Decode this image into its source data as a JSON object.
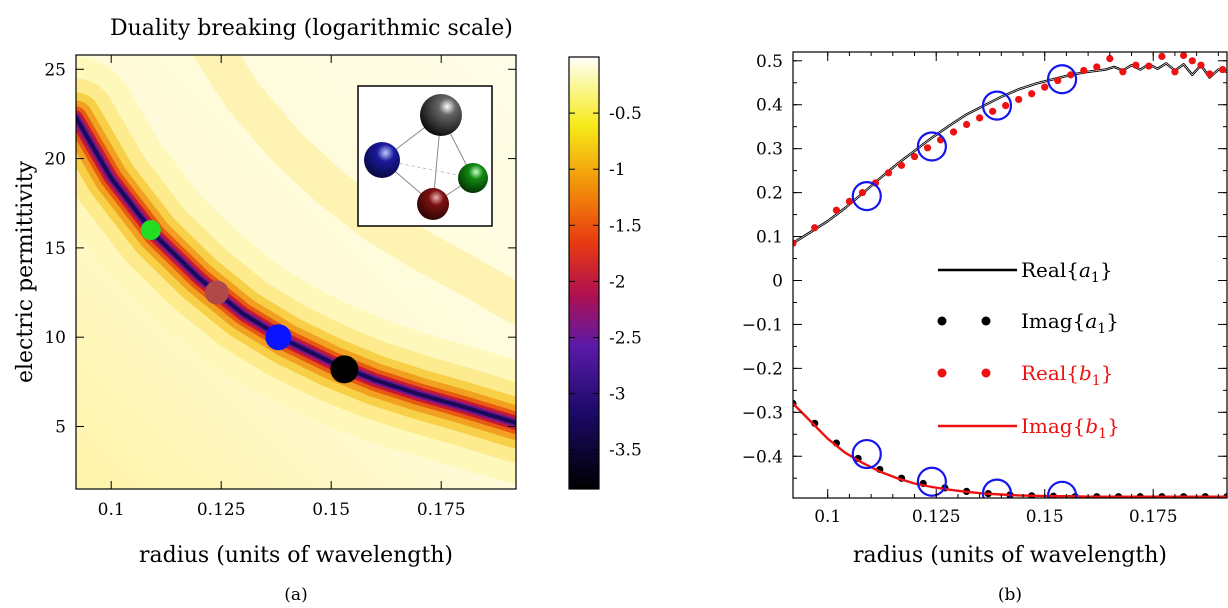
{
  "chart_data": [
    {
      "type": "heatmap",
      "panel_label": "(a)",
      "title": "Duality breaking (logarithmic scale)",
      "xlabel": "radius (units of wavelength)",
      "ylabel": "electric permittivity",
      "xlim": [
        0.092,
        0.192
      ],
      "ylim": [
        1.5,
        25.8
      ],
      "x_ticks": [
        "0.1",
        "0.125",
        "0.15",
        "0.175"
      ],
      "x_tick_values": [
        0.1,
        0.125,
        0.15,
        0.175
      ],
      "y_ticks": [
        "5",
        "10",
        "15",
        "20",
        "25"
      ],
      "y_tick_values": [
        5,
        10,
        15,
        20,
        25
      ],
      "colorbar": {
        "range": [
          -3.85,
          0
        ],
        "ticks": [
          "-0.5",
          "-1",
          "-1.5",
          "-2",
          "-2.5",
          "-3",
          "-3.5"
        ],
        "tick_values": [
          -0.5,
          -1,
          -1.5,
          -2,
          -2.5,
          -3,
          -3.5
        ]
      },
      "minimum_curve": {
        "x": [
          0.092,
          0.1,
          0.11,
          0.12,
          0.13,
          0.14,
          0.15,
          0.16,
          0.17,
          0.18,
          0.192
        ],
        "y": [
          22.3,
          18.9,
          15.7,
          13.3,
          11.3,
          9.8,
          8.6,
          7.6,
          6.8,
          6.1,
          5.2
        ]
      },
      "markers": [
        {
          "x": 0.109,
          "y": 16.0,
          "color": "#22dd22"
        },
        {
          "x": 0.124,
          "y": 12.5,
          "color": "#b04a4a"
        },
        {
          "x": 0.138,
          "y": 10.0,
          "color": "#0a14ff"
        },
        {
          "x": 0.153,
          "y": 8.2,
          "color": "#000000"
        }
      ],
      "inset": {
        "spheres": [
          {
            "name": "black",
            "color": "#000000"
          },
          {
            "name": "blue",
            "color": "#1a1a9c"
          },
          {
            "name": "green",
            "color": "#118811"
          },
          {
            "name": "red",
            "color": "#7a1010"
          }
        ]
      }
    },
    {
      "type": "line",
      "panel_label": "(b)",
      "xlabel": "radius (units of wavelength)",
      "xlim": [
        0.092,
        0.192
      ],
      "ylim": [
        -0.495,
        0.52
      ],
      "x_ticks": [
        "0.1",
        "0.125",
        "0.15",
        "0.175"
      ],
      "x_tick_values": [
        0.1,
        0.125,
        0.15,
        0.175
      ],
      "y_ticks": [
        "0.5",
        "0.4",
        "0.3",
        "0.2",
        "0.1",
        "0",
        "−0.1",
        "−0.2",
        "−0.3",
        "−0.4"
      ],
      "y_tick_values": [
        0.5,
        0.4,
        0.3,
        0.2,
        0.1,
        0,
        -0.1,
        -0.2,
        -0.3,
        -0.4
      ],
      "legend_position": "center-right",
      "series": [
        {
          "name": "Real{a1}",
          "legend_text": "Real{",
          "legend_var": "a",
          "legend_sub": "1",
          "style": "line",
          "color": "#000000",
          "x": [
            0.092,
            0.096,
            0.1,
            0.104,
            0.108,
            0.112,
            0.116,
            0.12,
            0.124,
            0.128,
            0.132,
            0.136,
            0.14,
            0.144,
            0.148,
            0.152,
            0.156,
            0.16,
            0.164,
            0.166,
            0.168,
            0.17,
            0.172,
            0.174,
            0.176,
            0.178,
            0.18,
            0.182,
            0.184,
            0.186,
            0.188,
            0.19,
            0.192
          ],
          "y": [
            0.085,
            0.11,
            0.135,
            0.165,
            0.198,
            0.232,
            0.265,
            0.295,
            0.325,
            0.352,
            0.378,
            0.398,
            0.418,
            0.435,
            0.448,
            0.458,
            0.468,
            0.475,
            0.48,
            0.486,
            0.478,
            0.49,
            0.48,
            0.492,
            0.482,
            0.494,
            0.478,
            0.492,
            0.468,
            0.49,
            0.462,
            0.48,
            0.475
          ]
        },
        {
          "name": "Imag{a1}",
          "legend_text": "Imag{",
          "legend_var": "a",
          "legend_sub": "1",
          "style": "dots",
          "color": "#000000",
          "x": [
            0.092,
            0.097,
            0.102,
            0.107,
            0.112,
            0.117,
            0.122,
            0.127,
            0.132,
            0.137,
            0.142,
            0.147,
            0.152,
            0.157,
            0.162,
            0.167,
            0.172,
            0.177,
            0.182,
            0.187,
            0.192
          ],
          "y": [
            -0.28,
            -0.325,
            -0.37,
            -0.405,
            -0.43,
            -0.45,
            -0.462,
            -0.472,
            -0.48,
            -0.485,
            -0.488,
            -0.49,
            -0.491,
            -0.492,
            -0.492,
            -0.492,
            -0.492,
            -0.492,
            -0.492,
            -0.492,
            -0.492
          ]
        },
        {
          "name": "Real{b1}",
          "legend_text": "Real{",
          "legend_var": "b",
          "legend_sub": "1",
          "style": "dots",
          "color": "#ee1111",
          "x": [
            0.092,
            0.097,
            0.102,
            0.105,
            0.108,
            0.111,
            0.114,
            0.117,
            0.12,
            0.123,
            0.126,
            0.129,
            0.132,
            0.135,
            0.138,
            0.141,
            0.144,
            0.147,
            0.15,
            0.153,
            0.156,
            0.159,
            0.162,
            0.165,
            0.168,
            0.171,
            0.174,
            0.177,
            0.18,
            0.182,
            0.184,
            0.186,
            0.188,
            0.191
          ],
          "y": [
            0.085,
            0.12,
            0.16,
            0.18,
            0.2,
            0.222,
            0.245,
            0.262,
            0.282,
            0.302,
            0.32,
            0.338,
            0.355,
            0.37,
            0.385,
            0.398,
            0.412,
            0.425,
            0.44,
            0.455,
            0.468,
            0.478,
            0.486,
            0.505,
            0.475,
            0.49,
            0.488,
            0.51,
            0.475,
            0.512,
            0.5,
            0.49,
            0.47,
            0.48
          ]
        },
        {
          "name": "Imag{b1}",
          "legend_text": "Imag{",
          "legend_var": "b",
          "legend_sub": "1",
          "style": "line",
          "color": "#ee1111",
          "x": [
            0.092,
            0.096,
            0.1,
            0.104,
            0.108,
            0.112,
            0.116,
            0.12,
            0.124,
            0.128,
            0.132,
            0.136,
            0.14,
            0.144,
            0.148,
            0.152,
            0.156,
            0.16,
            0.166,
            0.172,
            0.178,
            0.184,
            0.192
          ],
          "y": [
            -0.28,
            -0.32,
            -0.36,
            -0.392,
            -0.415,
            -0.435,
            -0.45,
            -0.462,
            -0.47,
            -0.476,
            -0.481,
            -0.485,
            -0.487,
            -0.489,
            -0.49,
            -0.491,
            -0.491,
            -0.492,
            -0.492,
            -0.492,
            -0.492,
            -0.492,
            -0.492
          ]
        }
      ],
      "circle_markers": {
        "color": "#1515ee",
        "points": [
          {
            "x": 0.109,
            "y": 0.192
          },
          {
            "x": 0.124,
            "y": 0.305
          },
          {
            "x": 0.139,
            "y": 0.398
          },
          {
            "x": 0.154,
            "y": 0.458
          },
          {
            "x": 0.109,
            "y": -0.395
          },
          {
            "x": 0.124,
            "y": -0.458
          },
          {
            "x": 0.139,
            "y": -0.485
          },
          {
            "x": 0.154,
            "y": -0.49
          }
        ]
      }
    }
  ]
}
